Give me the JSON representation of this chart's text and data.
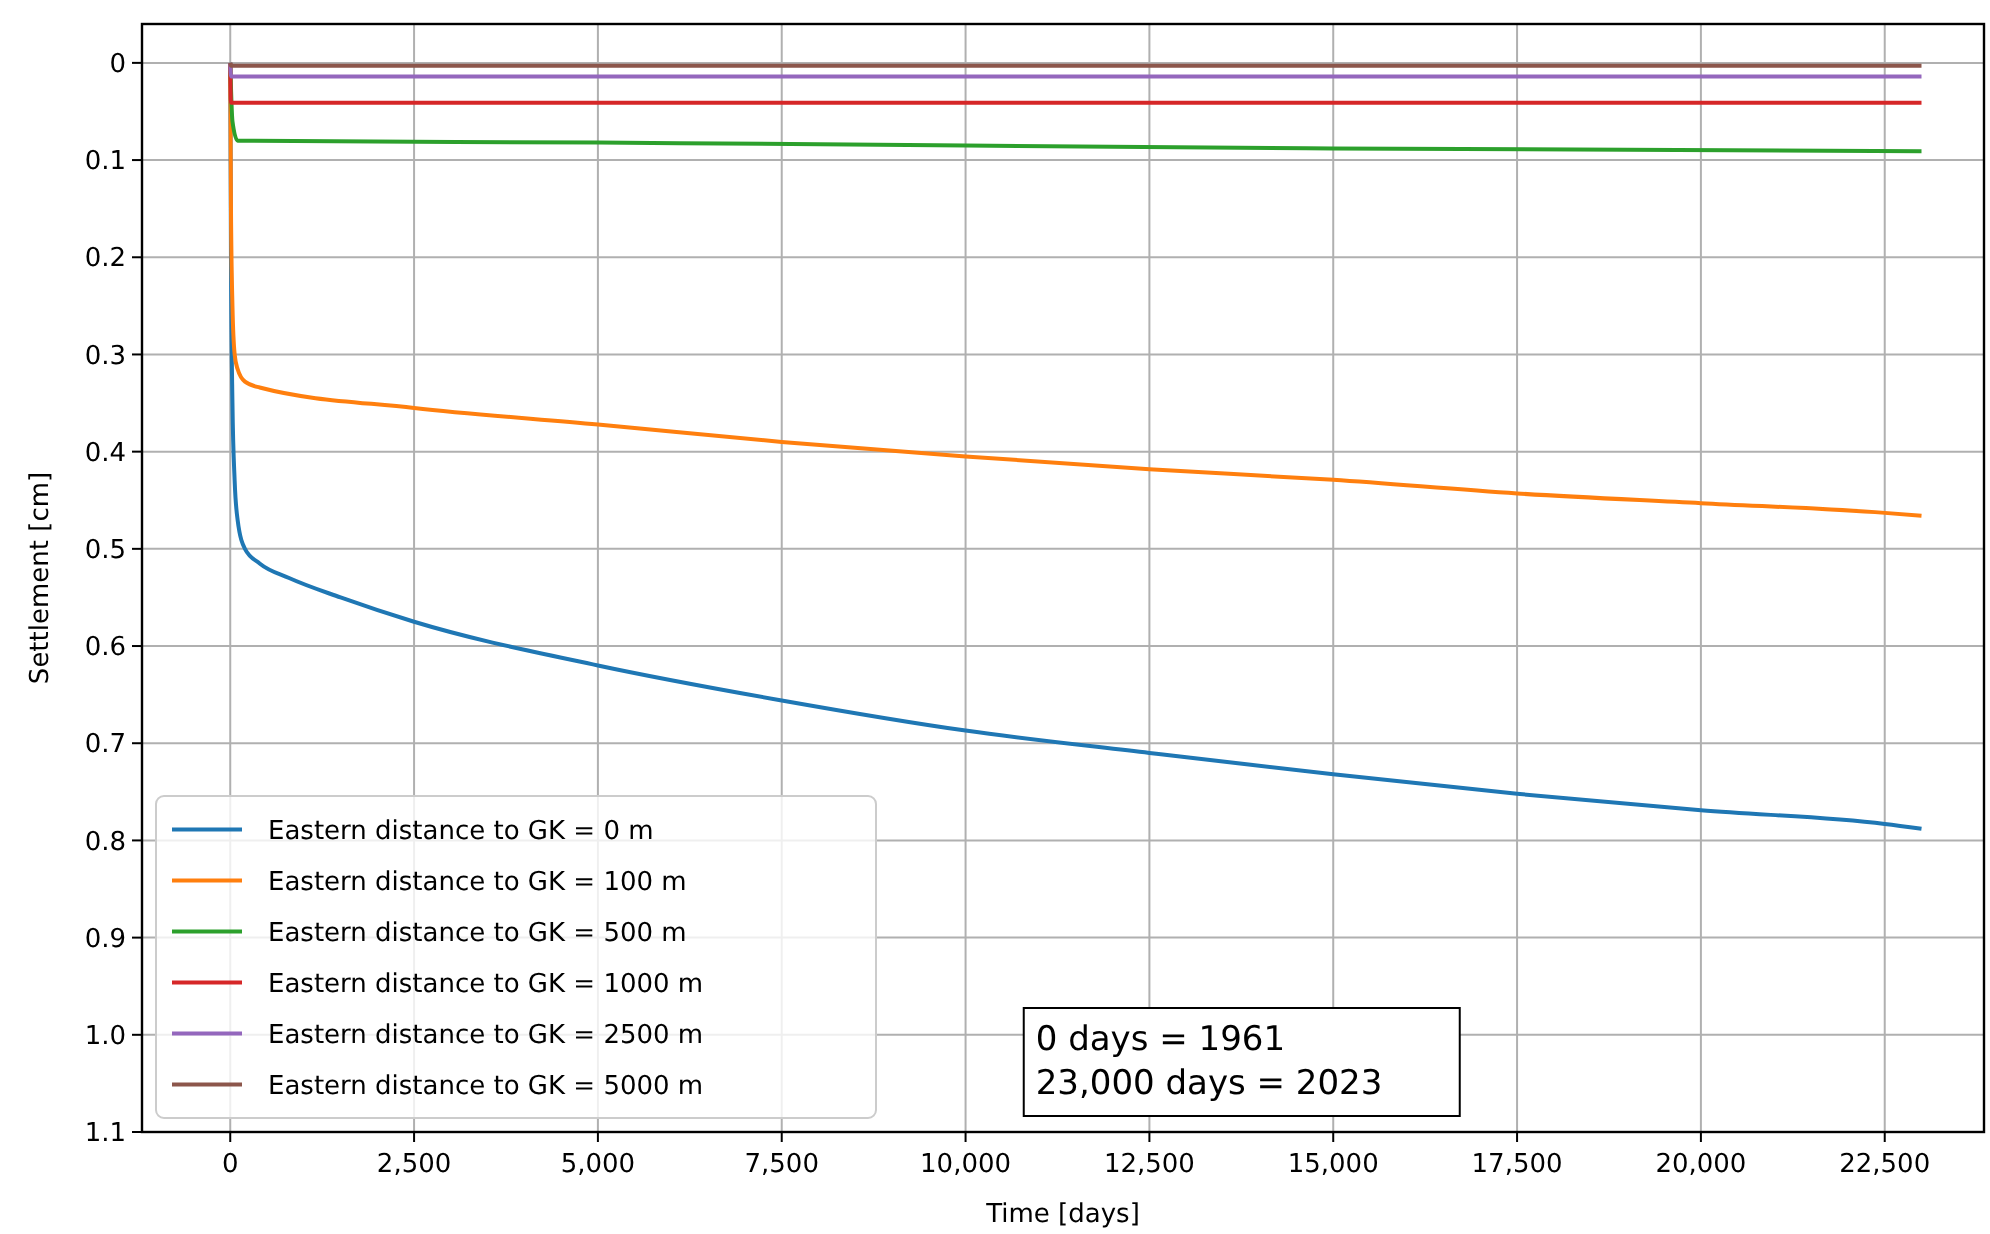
{
  "chart_data": {
    "type": "line",
    "xlabel": "Time [days]",
    "ylabel": "Settlement [cm]",
    "xlim": [
      -1200,
      23850
    ],
    "ylim": [
      1.1,
      -0.04
    ],
    "xticks": [
      {
        "value": 0,
        "label": "0"
      },
      {
        "value": 2500,
        "label": "2,500"
      },
      {
        "value": 5000,
        "label": "5,000"
      },
      {
        "value": 7500,
        "label": "7,500"
      },
      {
        "value": 10000,
        "label": "10,000"
      },
      {
        "value": 12500,
        "label": "12,500"
      },
      {
        "value": 15000,
        "label": "15,000"
      },
      {
        "value": 17500,
        "label": "17,500"
      },
      {
        "value": 20000,
        "label": "20,000"
      },
      {
        "value": 22500,
        "label": "22,500"
      }
    ],
    "yticks": [
      0,
      0.1,
      0.2,
      0.3,
      0.4,
      0.5,
      0.6,
      0.7,
      0.8,
      0.9,
      {
        "value": 1,
        "label": "1.0"
      },
      1.1
    ],
    "grid": true,
    "legend": "bottom left",
    "marker": "none",
    "line_style": "solid",
    "annotations": [
      "0 days = 1961\n23,000 days = 2023"
    ],
    "series": [
      {
        "name": "Eastern distance to GK = 0 m",
        "color": "#1f77b4",
        "x": [
          0,
          10,
          30,
          60,
          100,
          200,
          400,
          800,
          1500,
          2500,
          5000,
          7500,
          10000,
          12500,
          15000,
          17500,
          20000,
          22500,
          23000
        ],
        "values": [
          0,
          0.2,
          0.35,
          0.43,
          0.47,
          0.5,
          0.515,
          0.53,
          0.55,
          0.575,
          0.62,
          0.656,
          0.687,
          0.71,
          0.732,
          0.752,
          0.769,
          0.783,
          0.788
        ]
      },
      {
        "name": "Eastern distance to GK = 100 m",
        "color": "#ff7f0e",
        "x": [
          0,
          10,
          30,
          60,
          100,
          200,
          400,
          2500,
          5000,
          7500,
          10000,
          12500,
          15000,
          17500,
          20000,
          22500,
          23000
        ],
        "values": [
          0,
          0.15,
          0.25,
          0.3,
          0.315,
          0.328,
          0.334,
          0.355,
          0.372,
          0.39,
          0.405,
          0.418,
          0.429,
          0.443,
          0.453,
          0.463,
          0.466
        ]
      },
      {
        "name": "Eastern distance to GK = 500 m",
        "color": "#2ca02c",
        "x": [
          0,
          30,
          100,
          5000,
          10000,
          15000,
          23000
        ],
        "values": [
          0,
          0.06,
          0.08,
          0.082,
          0.085,
          0.088,
          0.091
        ]
      },
      {
        "name": "Eastern distance to GK = 1000 m",
        "color": "#d62728",
        "x": [
          0,
          10,
          23000
        ],
        "values": [
          0,
          0.041,
          0.041
        ]
      },
      {
        "name": "Eastern distance to GK = 2500 m",
        "color": "#9467bd",
        "x": [
          0,
          10,
          23000
        ],
        "values": [
          0,
          0.014,
          0.014
        ]
      },
      {
        "name": "Eastern distance to GK = 5000 m",
        "color": "#8c564b",
        "x": [
          0,
          10,
          23000
        ],
        "values": [
          0,
          0.003,
          0.003
        ]
      }
    ]
  }
}
